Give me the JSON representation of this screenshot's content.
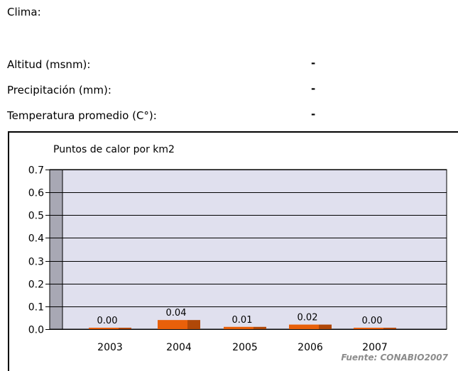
{
  "info": {
    "clima_label": "Clima:",
    "altitud_label": "Altitud (msnm):",
    "altitud_value": "-",
    "precipitacion_label": "Precipitación (mm):",
    "precipitacion_value": "-",
    "temperatura_label": "Temperatura promedio (C°):",
    "temperatura_value": "-"
  },
  "colors": {
    "plot_bg": "#e0e0ee",
    "wall": "#a8a8b4",
    "bar_front": "#e8600a",
    "bar_side": "#b04808",
    "source_text": "#8c8c8c"
  },
  "chart_data": {
    "type": "bar",
    "title": "Puntos de calor por km2",
    "categories": [
      "2003",
      "2004",
      "2005",
      "2006",
      "2007"
    ],
    "values": [
      0.0,
      0.04,
      0.01,
      0.02,
      0.0
    ],
    "value_labels": [
      "0.00",
      "0.04",
      "0.01",
      "0.02",
      "0.00"
    ],
    "y_ticks": [
      "0.0",
      "0.1",
      "0.2",
      "0.3",
      "0.4",
      "0.5",
      "0.6",
      "0.7"
    ],
    "ylim": [
      0,
      0.7
    ],
    "grid": true,
    "source": "Fuente: CONABIO2007"
  }
}
